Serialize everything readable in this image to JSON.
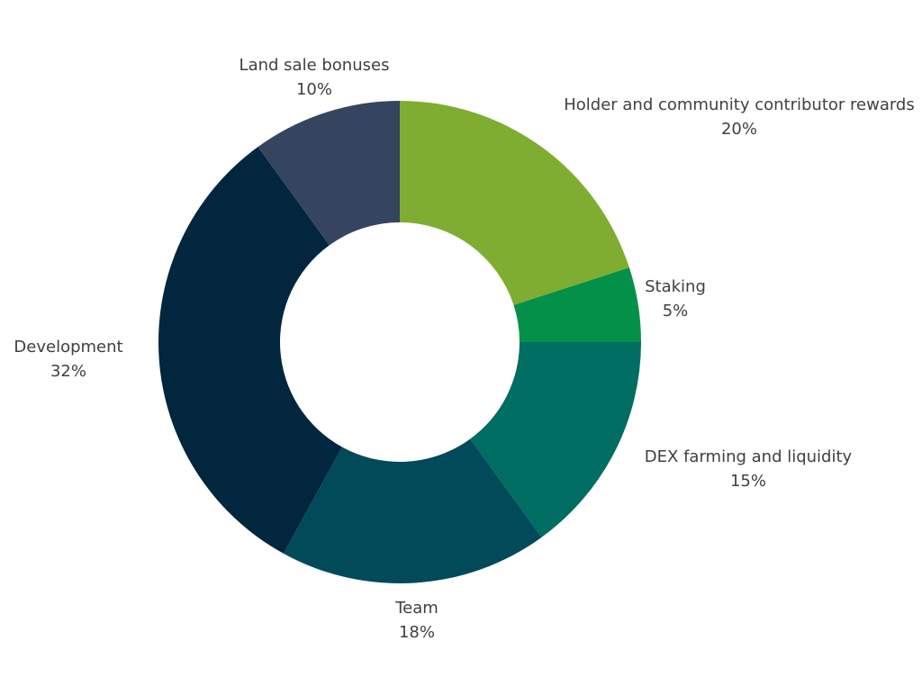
{
  "chart_data": {
    "type": "pie",
    "donut": true,
    "title": "",
    "legend": "none",
    "start_angle_deg": 0,
    "direction": "clockwise",
    "slices": [
      {
        "label": "Holder and community contributor rewards",
        "value": 20,
        "value_label": "20%",
        "color": "#7fad31"
      },
      {
        "label": "Staking",
        "value": 5,
        "value_label": "5%",
        "color": "#03914a"
      },
      {
        "label": "DEX farming and liquidity",
        "value": 15,
        "value_label": "15%",
        "color": "#006d62"
      },
      {
        "label": "Team",
        "value": 18,
        "value_label": "18%",
        "color": "#004a5a"
      },
      {
        "label": "Development",
        "value": 32,
        "value_label": "32%",
        "color": "#02263d"
      },
      {
        "label": "Land sale bonuses",
        "value": 10,
        "value_label": "10%",
        "color": "#35445f"
      }
    ]
  }
}
